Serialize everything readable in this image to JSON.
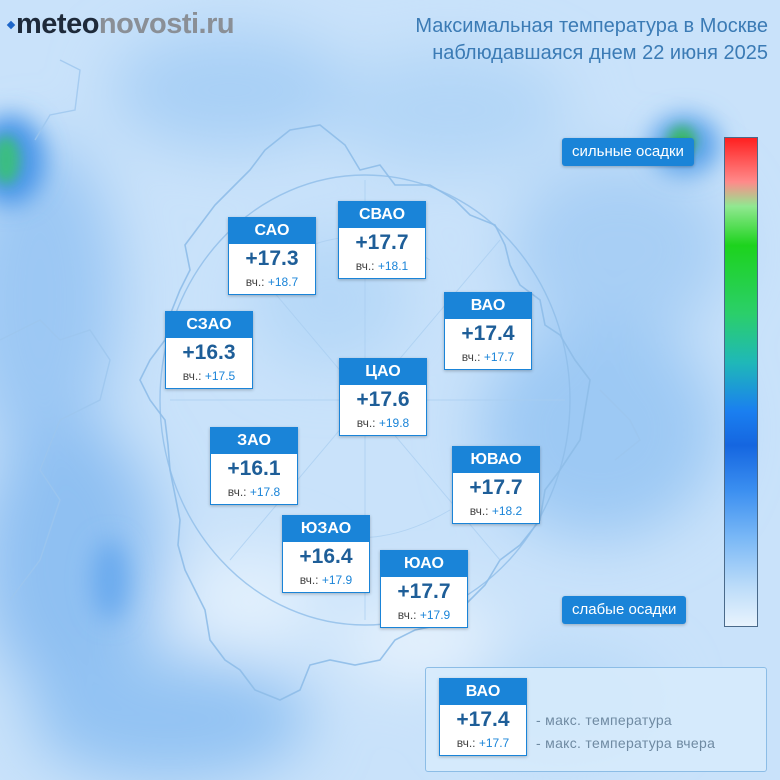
{
  "header": {
    "logo_left": "meteo",
    "logo_right": "novosti.ru",
    "title_line1": "Максимальная температура в Москве",
    "title_line2": "наблюдавшаяся днем 22 июня 2025"
  },
  "yesterday_prefix": "вч.:",
  "districts": [
    {
      "name": "САО",
      "temp": "+17.3",
      "yest": "+18.7"
    },
    {
      "name": "СВАО",
      "temp": "+17.7",
      "yest": "+18.1"
    },
    {
      "name": "ВАО",
      "temp": "+17.4",
      "yest": "+17.7"
    },
    {
      "name": "СЗАО",
      "temp": "+16.3",
      "yest": "+17.5"
    },
    {
      "name": "ЦАО",
      "temp": "+17.6",
      "yest": "+19.8"
    },
    {
      "name": "ЗАО",
      "temp": "+16.1",
      "yest": "+17.8"
    },
    {
      "name": "ЮВАО",
      "temp": "+17.7",
      "yest": "+18.2"
    },
    {
      "name": "ЮЗАО",
      "temp": "+16.4",
      "yest": "+17.9"
    },
    {
      "name": "ЮАО",
      "temp": "+17.7",
      "yest": "+17.9"
    }
  ],
  "scale": {
    "top_label": "сильные осадки",
    "bottom_label": "слабые осадки"
  },
  "legend": {
    "sample": {
      "name": "ВАО",
      "temp": "+17.4",
      "yest": "+17.7"
    },
    "line1": "- макс. температура",
    "line2": "- макс. температура вчера"
  },
  "colors": {
    "accent": "#1a84d8",
    "title": "#3b7bb5",
    "logo_dark": "#1e2a3a",
    "logo_light": "#8a8f96"
  }
}
